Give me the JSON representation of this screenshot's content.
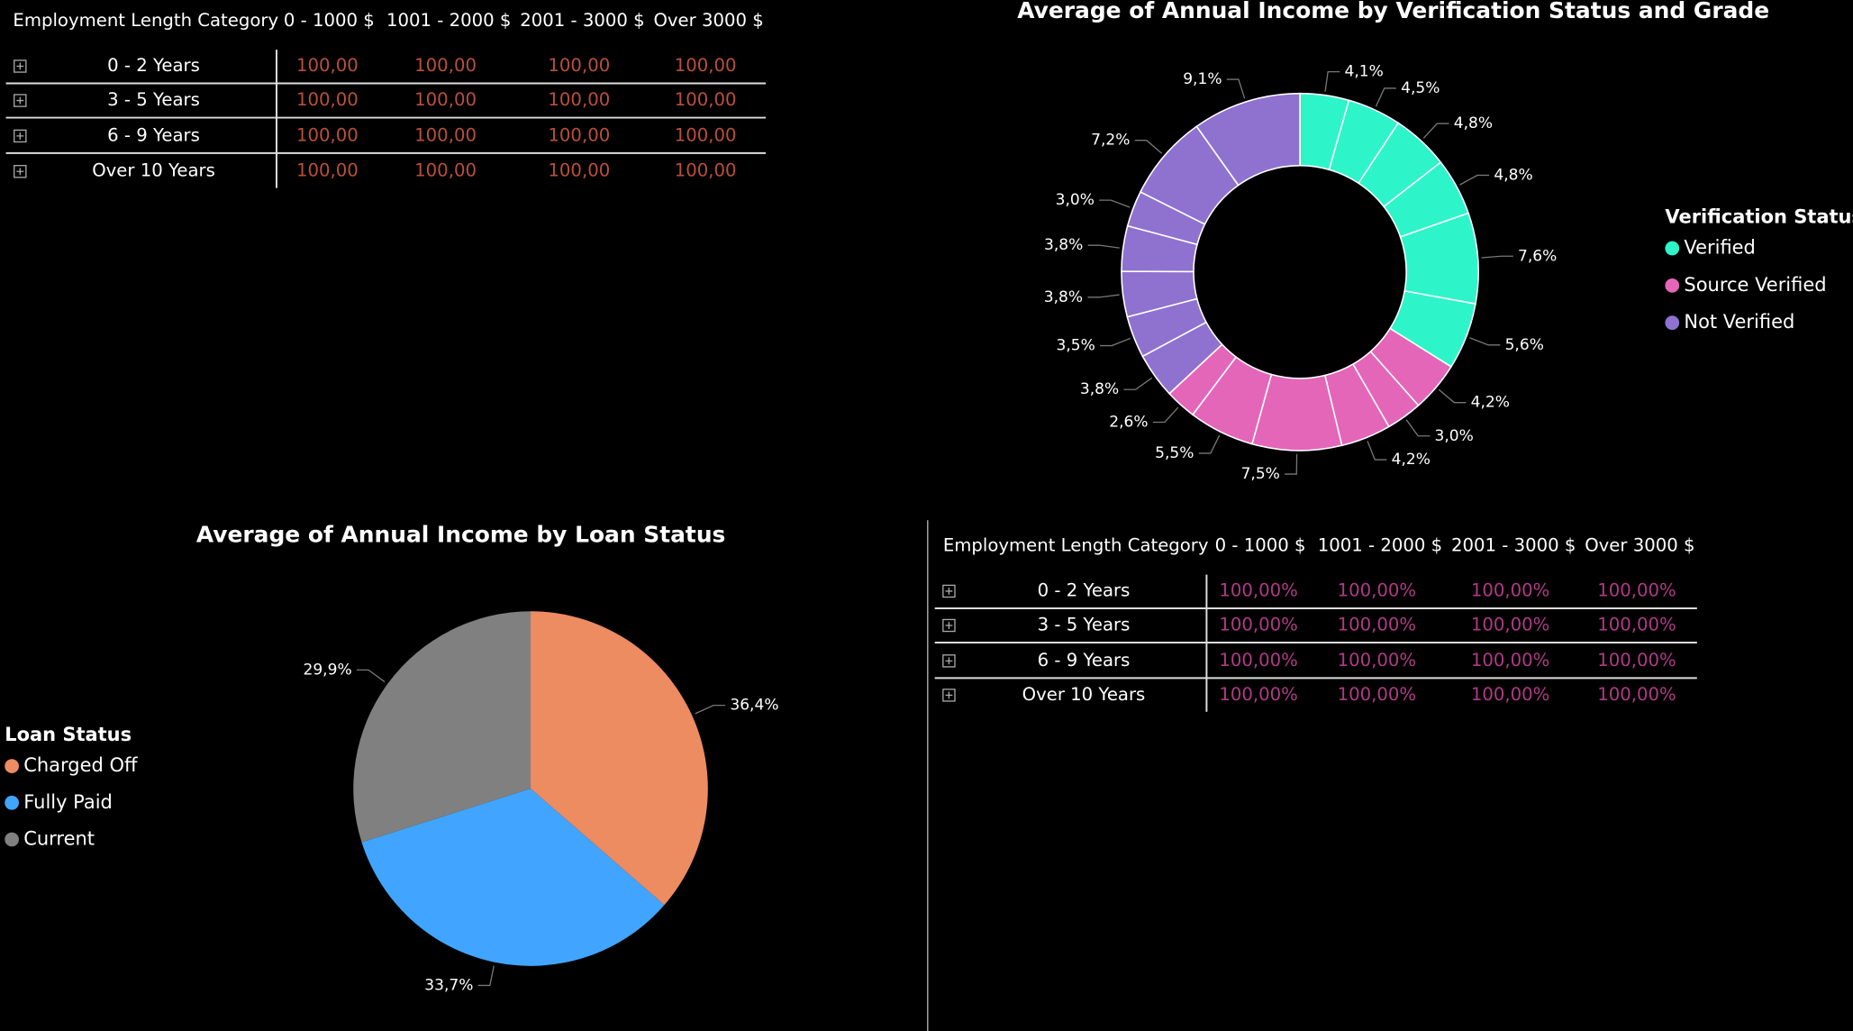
{
  "chart_data": [
    {
      "type": "donut",
      "title": "Average of Annual Income by Verification Status and Grade",
      "legend_title": "Verification Status",
      "groups": [
        {
          "name": "Verified",
          "color": "#2ef5c9",
          "values": [
            4.1,
            4.5,
            4.8,
            4.8,
            7.6,
            5.6
          ],
          "value_labels": [
            "4,1%",
            "4,5%",
            "4,8%",
            "4,8%",
            "7,6%",
            "5,6%"
          ]
        },
        {
          "name": "Source Verified",
          "color": "#e466b9",
          "values": [
            4.2,
            3.0,
            4.2,
            7.5,
            5.5,
            2.6
          ],
          "value_labels": [
            "4,2%",
            "3,0%",
            "4,2%",
            "7,5%",
            "5,5%",
            "2,6%"
          ]
        },
        {
          "name": "Not Verified",
          "color": "#8f72d0",
          "values": [
            3.8,
            3.5,
            3.8,
            3.8,
            3.0,
            7.2,
            9.1
          ],
          "value_labels": [
            "3,8%",
            "3,5%",
            "3,8%",
            "3,8%",
            "3,0%",
            "7,2%",
            "9,1%"
          ]
        }
      ]
    },
    {
      "type": "pie",
      "title": "Average of Annual Income by Loan Status",
      "legend_title": "Loan Status",
      "categories": [
        "Charged Off",
        "Fully Paid",
        "Current"
      ],
      "values": [
        36.4,
        33.7,
        29.9
      ],
      "value_labels": [
        "36,4%",
        "33,7%",
        "29,9%"
      ],
      "colors": [
        "#ed8b61",
        "#41a5ff",
        "#808080"
      ]
    }
  ],
  "tables": [
    {
      "columns": [
        "Employment Length Category",
        "0 - 1000 $",
        "1001 - 2000 $",
        "2001 - 3000 $",
        "Over 3000 $"
      ],
      "value_color": "#b8503c",
      "rows": [
        {
          "label": "0 - 2 Years",
          "values": [
            "100,00",
            "100,00",
            "100,00",
            "100,00"
          ]
        },
        {
          "label": "3 - 5 Years",
          "values": [
            "100,00",
            "100,00",
            "100,00",
            "100,00"
          ]
        },
        {
          "label": "6 - 9 Years",
          "values": [
            "100,00",
            "100,00",
            "100,00",
            "100,00"
          ]
        },
        {
          "label": "Over 10 Years",
          "values": [
            "100,00",
            "100,00",
            "100,00",
            "100,00"
          ]
        }
      ]
    },
    {
      "columns": [
        "Employment Length Category",
        "0 - 1000 $",
        "1001 - 2000 $",
        "2001 - 3000 $",
        "Over 3000 $"
      ],
      "value_color": "#b03a86",
      "rows": [
        {
          "label": "0 - 2 Years",
          "values": [
            "100,00%",
            "100,00%",
            "100,00%",
            "100,00%"
          ]
        },
        {
          "label": "3 - 5 Years",
          "values": [
            "100,00%",
            "100,00%",
            "100,00%",
            "100,00%"
          ]
        },
        {
          "label": "6 - 9 Years",
          "values": [
            "100,00%",
            "100,00%",
            "100,00%",
            "100,00%"
          ]
        },
        {
          "label": "Over 10 Years",
          "values": [
            "100,00%",
            "100,00%",
            "100,00%",
            "100,00%"
          ]
        }
      ]
    }
  ]
}
